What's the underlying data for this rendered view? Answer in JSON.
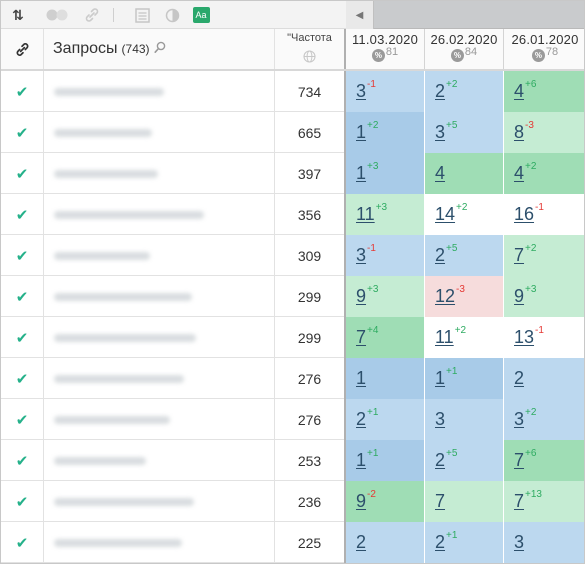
{
  "toolbar": {
    "icons": [
      "sort-icon",
      "toggle-icon",
      "link-icon",
      "table-icon",
      "contrast-icon",
      "text-size-icon"
    ],
    "text_size_label": "Aa"
  },
  "header": {
    "queries_title": "Запросы",
    "queries_count": "(743)",
    "frequency_label": "\"Частота",
    "dates": [
      {
        "date": "11.03.2020",
        "percent": "81"
      },
      {
        "date": "26.02.2020",
        "percent": "84"
      },
      {
        "date": "26.01.2020",
        "percent": "78"
      }
    ],
    "percent_symbol": "%"
  },
  "colors": {
    "check": "#25b18a",
    "up": "#2eab61",
    "down": "#e53935",
    "blue_strong": "#a8cbe8",
    "blue_light": "#bcd8ef",
    "green_strong": "#9fddb5",
    "green_light": "#c5ecd3",
    "pink": "#f6dcdc"
  },
  "rows": [
    {
      "freq": "734",
      "cells": [
        {
          "pos": "3",
          "delta": "1",
          "dir": "down",
          "bg": "blue2"
        },
        {
          "pos": "2",
          "delta": "2",
          "dir": "up",
          "bg": "blue2"
        },
        {
          "pos": "4",
          "delta": "6",
          "dir": "up",
          "bg": "green1"
        }
      ]
    },
    {
      "freq": "665",
      "cells": [
        {
          "pos": "1",
          "delta": "2",
          "dir": "up",
          "bg": "blue1"
        },
        {
          "pos": "3",
          "delta": "5",
          "dir": "up",
          "bg": "blue2"
        },
        {
          "pos": "8",
          "delta": "3",
          "dir": "down",
          "bg": "green2"
        }
      ]
    },
    {
      "freq": "397",
      "cells": [
        {
          "pos": "1",
          "delta": "3",
          "dir": "up",
          "bg": "blue1"
        },
        {
          "pos": "4",
          "delta": "",
          "dir": "",
          "bg": "green1"
        },
        {
          "pos": "4",
          "delta": "2",
          "dir": "up",
          "bg": "green1"
        }
      ]
    },
    {
      "freq": "356",
      "cells": [
        {
          "pos": "11",
          "delta": "3",
          "dir": "up",
          "bg": "green2"
        },
        {
          "pos": "14",
          "delta": "2",
          "dir": "up",
          "bg": "white"
        },
        {
          "pos": "16",
          "delta": "1",
          "dir": "down",
          "bg": "white"
        }
      ]
    },
    {
      "freq": "309",
      "cells": [
        {
          "pos": "3",
          "delta": "1",
          "dir": "down",
          "bg": "blue2"
        },
        {
          "pos": "2",
          "delta": "5",
          "dir": "up",
          "bg": "blue2"
        },
        {
          "pos": "7",
          "delta": "2",
          "dir": "up",
          "bg": "green2"
        }
      ]
    },
    {
      "freq": "299",
      "cells": [
        {
          "pos": "9",
          "delta": "3",
          "dir": "up",
          "bg": "green2"
        },
        {
          "pos": "12",
          "delta": "3",
          "dir": "down",
          "bg": "pink"
        },
        {
          "pos": "9",
          "delta": "3",
          "dir": "up",
          "bg": "green2"
        }
      ]
    },
    {
      "freq": "299",
      "cells": [
        {
          "pos": "7",
          "delta": "4",
          "dir": "up",
          "bg": "green1"
        },
        {
          "pos": "11",
          "delta": "2",
          "dir": "up",
          "bg": "white"
        },
        {
          "pos": "13",
          "delta": "1",
          "dir": "down",
          "bg": "white"
        }
      ]
    },
    {
      "freq": "276",
      "cells": [
        {
          "pos": "1",
          "delta": "",
          "dir": "",
          "bg": "blue1"
        },
        {
          "pos": "1",
          "delta": "1",
          "dir": "up",
          "bg": "blue1"
        },
        {
          "pos": "2",
          "delta": "",
          "dir": "",
          "bg": "blue2"
        }
      ]
    },
    {
      "freq": "276",
      "cells": [
        {
          "pos": "2",
          "delta": "1",
          "dir": "up",
          "bg": "blue2"
        },
        {
          "pos": "3",
          "delta": "",
          "dir": "",
          "bg": "blue2"
        },
        {
          "pos": "3",
          "delta": "2",
          "dir": "up",
          "bg": "blue2"
        }
      ]
    },
    {
      "freq": "253",
      "cells": [
        {
          "pos": "1",
          "delta": "1",
          "dir": "up",
          "bg": "blue1"
        },
        {
          "pos": "2",
          "delta": "5",
          "dir": "up",
          "bg": "blue2"
        },
        {
          "pos": "7",
          "delta": "6",
          "dir": "up",
          "bg": "green1"
        }
      ]
    },
    {
      "freq": "236",
      "cells": [
        {
          "pos": "9",
          "delta": "2",
          "dir": "down",
          "bg": "green1"
        },
        {
          "pos": "7",
          "delta": "",
          "dir": "",
          "bg": "green2"
        },
        {
          "pos": "7",
          "delta": "13",
          "dir": "up",
          "bg": "green2"
        }
      ]
    },
    {
      "freq": "225",
      "cells": [
        {
          "pos": "2",
          "delta": "",
          "dir": "",
          "bg": "blue2"
        },
        {
          "pos": "2",
          "delta": "1",
          "dir": "up",
          "bg": "blue2"
        },
        {
          "pos": "3",
          "delta": "",
          "dir": "",
          "bg": "blue2"
        }
      ]
    }
  ]
}
